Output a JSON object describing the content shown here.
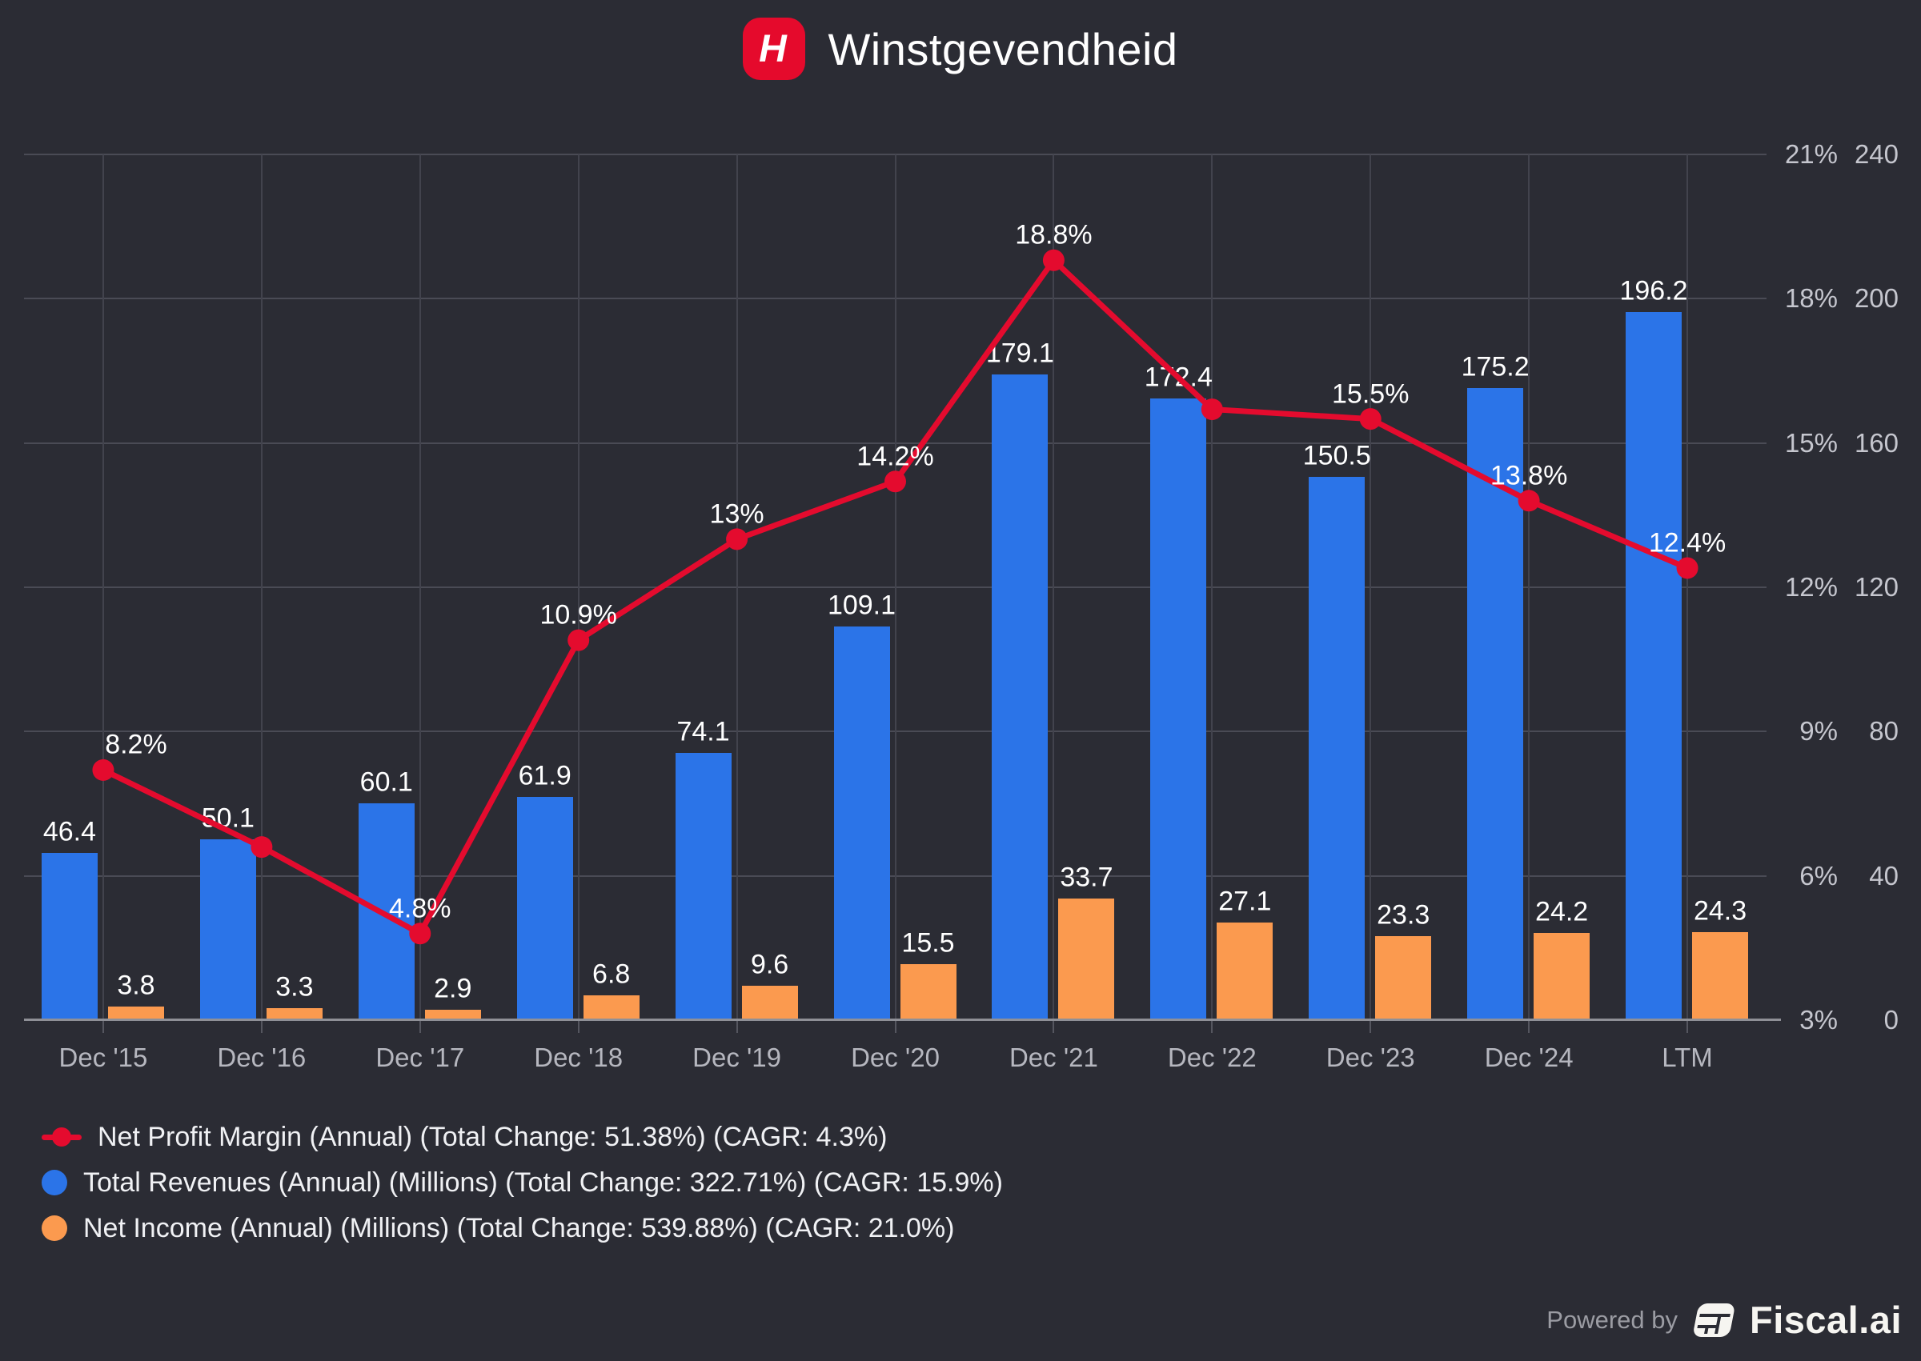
{
  "header": {
    "title": "Winstgevendheid",
    "logo_letter": "H"
  },
  "chart_data": {
    "type": "combo",
    "categories": [
      "Dec '15",
      "Dec '16",
      "Dec '17",
      "Dec '18",
      "Dec '19",
      "Dec '20",
      "Dec '21",
      "Dec '22",
      "Dec '23",
      "Dec '24",
      "LTM"
    ],
    "series": [
      {
        "name": "Net Profit Margin (Annual)",
        "type": "line",
        "axis": "percent",
        "color": "#e40b2e",
        "values": [
          8.2,
          6.6,
          4.8,
          10.9,
          13,
          14.2,
          18.8,
          15.7,
          15.5,
          13.8,
          12.4
        ],
        "point_labels": [
          "8.2%",
          null,
          "4.8%",
          "10.9%",
          "13%",
          "14.2%",
          "18.8%",
          null,
          "15.5%",
          "13.8%",
          "12.4%"
        ]
      },
      {
        "name": "Total Revenues (Annual) (Millions)",
        "type": "bar",
        "axis": "value",
        "color": "#2b74e8",
        "values": [
          46.4,
          50.1,
          60.1,
          61.9,
          74.1,
          109.1,
          179.1,
          172.4,
          150.5,
          175.2,
          196.2
        ],
        "bar_labels": [
          "46.4",
          "50.1",
          "60.1",
          "61.9",
          "74.1",
          "109.1",
          "179.1",
          "172.4",
          "150.5",
          "175.2",
          "196.2"
        ]
      },
      {
        "name": "Net Income (Annual) (Millions)",
        "type": "bar",
        "axis": "value",
        "color": "#fb9a4f",
        "values": [
          3.8,
          3.3,
          2.9,
          6.8,
          9.6,
          15.5,
          33.7,
          27.1,
          23.3,
          24.2,
          24.3
        ],
        "bar_labels": [
          "3.8",
          "3.3",
          "2.9",
          "6.8",
          "9.6",
          "15.5",
          "33.7",
          "27.1",
          "23.3",
          "24.2",
          "24.3"
        ]
      }
    ],
    "axes": {
      "percent": {
        "min": 3,
        "max": 21,
        "ticks": [
          "21%",
          "18%",
          "15%",
          "12%",
          "9%",
          "6%",
          "3%"
        ]
      },
      "value": {
        "min": 0,
        "max": 240,
        "ticks": [
          "240",
          "200",
          "160",
          "120",
          "80",
          "40",
          "0"
        ]
      }
    },
    "grid": true,
    "legend_position": "bottom-left",
    "legend": [
      {
        "label": "Net Profit Margin (Annual) (Total Change: 51.38%) (CAGR: 4.3%)",
        "color": "#e40b2e",
        "marker": "line-dot"
      },
      {
        "label": "Total Revenues (Annual) (Millions) (Total Change: 322.71%) (CAGR: 15.9%)",
        "color": "#2b74e8",
        "marker": "circle"
      },
      {
        "label": "Net Income (Annual) (Millions) (Total Change: 539.88%) (CAGR: 21.0%)",
        "color": "#fb9a4f",
        "marker": "circle"
      }
    ]
  },
  "footer": {
    "powered_by": "Powered by",
    "brand": "Fiscal.ai"
  }
}
